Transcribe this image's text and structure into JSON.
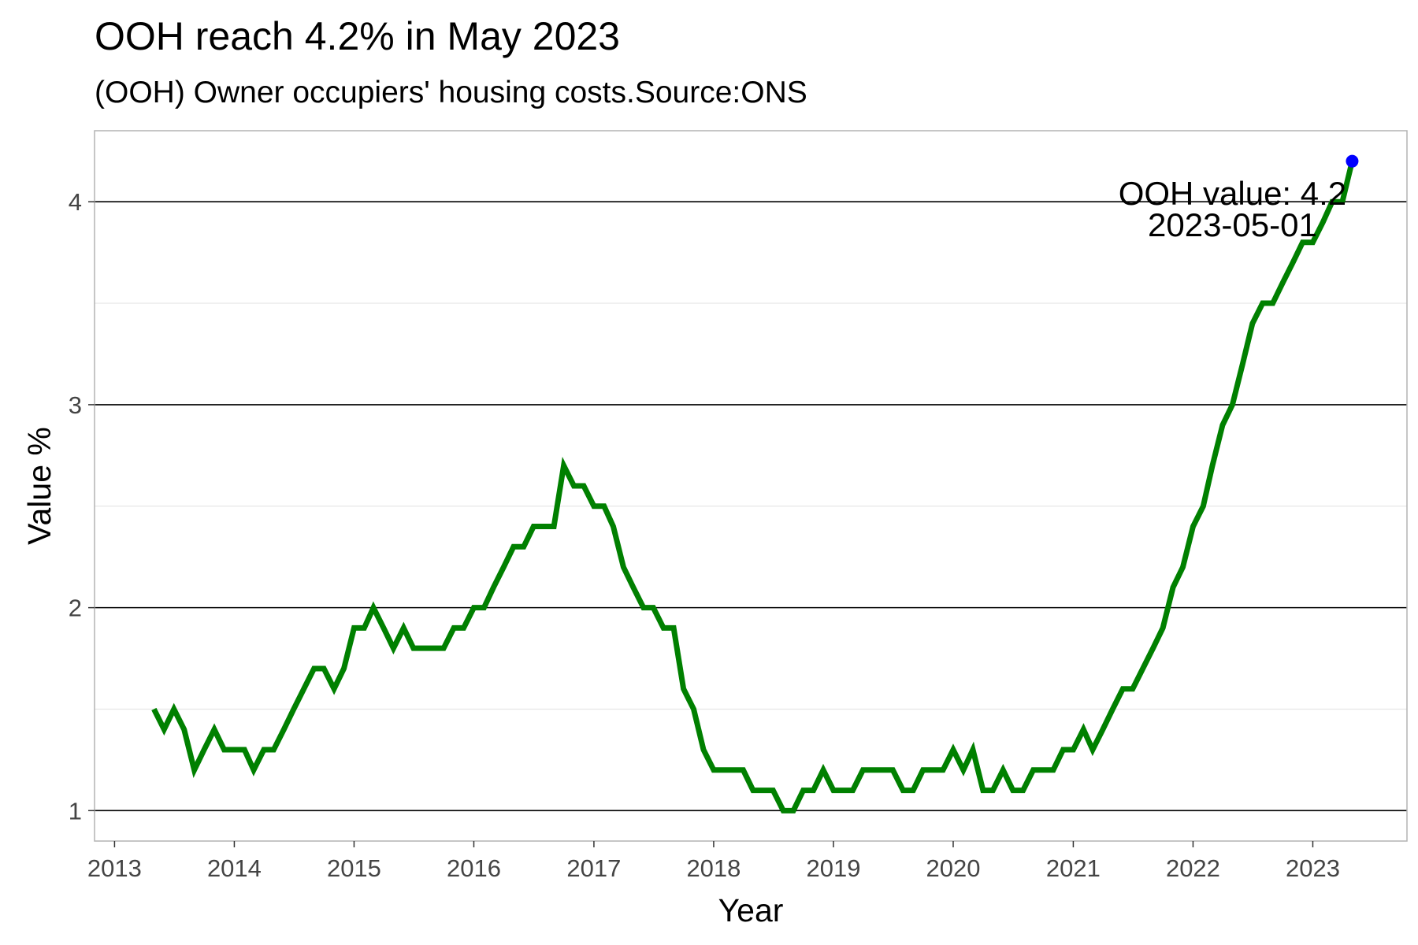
{
  "chart_data": {
    "type": "line",
    "title": "OOH reach 4.2% in May 2023",
    "subtitle": "(OOH) Owner occupiers' housing costs.Source:ONS",
    "xlabel": "Year",
    "ylabel": "Value %",
    "xlim": [
      "2012-11-01",
      "2023-10-15"
    ],
    "ylim": [
      0.85,
      4.35
    ],
    "x_ticks": [
      "2013",
      "2014",
      "2015",
      "2016",
      "2017",
      "2018",
      "2019",
      "2020",
      "2021",
      "2022",
      "2023"
    ],
    "y_ticks": [
      1,
      2,
      3,
      4
    ],
    "y_tick_labels": [
      "1",
      "2",
      "3",
      "4"
    ],
    "y_minor_gridlines": [
      1.5,
      2.5,
      3.5
    ],
    "grid": true,
    "legend": "none",
    "series": [
      {
        "color": "#008000",
        "x": [
          "2013-05-01",
          "2013-06-01",
          "2013-07-01",
          "2013-08-01",
          "2013-09-01",
          "2013-10-01",
          "2013-11-01",
          "2013-12-01",
          "2014-01-01",
          "2014-02-01",
          "2014-03-01",
          "2014-04-01",
          "2014-05-01",
          "2014-06-01",
          "2014-07-01",
          "2014-08-01",
          "2014-09-01",
          "2014-10-01",
          "2014-11-01",
          "2014-12-01",
          "2015-01-01",
          "2015-02-01",
          "2015-03-01",
          "2015-04-01",
          "2015-05-01",
          "2015-06-01",
          "2015-07-01",
          "2015-08-01",
          "2015-09-01",
          "2015-10-01",
          "2015-11-01",
          "2015-12-01",
          "2016-01-01",
          "2016-02-01",
          "2016-03-01",
          "2016-04-01",
          "2016-05-01",
          "2016-06-01",
          "2016-07-01",
          "2016-08-01",
          "2016-09-01",
          "2016-10-01",
          "2016-11-01",
          "2016-12-01",
          "2017-01-01",
          "2017-02-01",
          "2017-03-01",
          "2017-04-01",
          "2017-05-01",
          "2017-06-01",
          "2017-07-01",
          "2017-08-01",
          "2017-09-01",
          "2017-10-01",
          "2017-11-01",
          "2017-12-01",
          "2018-01-01",
          "2018-02-01",
          "2018-03-01",
          "2018-04-01",
          "2018-05-01",
          "2018-06-01",
          "2018-07-01",
          "2018-08-01",
          "2018-09-01",
          "2018-10-01",
          "2018-11-01",
          "2018-12-01",
          "2019-01-01",
          "2019-02-01",
          "2019-03-01",
          "2019-04-01",
          "2019-05-01",
          "2019-06-01",
          "2019-07-01",
          "2019-08-01",
          "2019-09-01",
          "2019-10-01",
          "2019-11-01",
          "2019-12-01",
          "2020-01-01",
          "2020-02-01",
          "2020-03-01",
          "2020-04-01",
          "2020-05-01",
          "2020-06-01",
          "2020-07-01",
          "2020-08-01",
          "2020-09-01",
          "2020-10-01",
          "2020-11-01",
          "2020-12-01",
          "2021-01-01",
          "2021-02-01",
          "2021-03-01",
          "2021-04-01",
          "2021-05-01",
          "2021-06-01",
          "2021-07-01",
          "2021-08-01",
          "2021-09-01",
          "2021-10-01",
          "2021-11-01",
          "2021-12-01",
          "2022-01-01",
          "2022-02-01",
          "2022-03-01",
          "2022-04-01",
          "2022-05-01",
          "2022-06-01",
          "2022-07-01",
          "2022-08-01",
          "2022-09-01",
          "2022-10-01",
          "2022-11-01",
          "2022-12-01",
          "2023-01-01",
          "2023-02-01",
          "2023-03-01",
          "2023-04-01",
          "2023-05-01"
        ],
        "values": [
          1.5,
          1.4,
          1.5,
          1.4,
          1.2,
          1.3,
          1.4,
          1.3,
          1.3,
          1.3,
          1.2,
          1.3,
          1.3,
          1.4,
          1.5,
          1.6,
          1.7,
          1.7,
          1.6,
          1.7,
          1.9,
          1.9,
          2.0,
          1.9,
          1.8,
          1.9,
          1.8,
          1.8,
          1.8,
          1.8,
          1.9,
          1.9,
          2.0,
          2.0,
          2.1,
          2.2,
          2.3,
          2.3,
          2.4,
          2.4,
          2.4,
          2.7,
          2.6,
          2.6,
          2.5,
          2.5,
          2.4,
          2.2,
          2.1,
          2.0,
          2.0,
          1.9,
          1.9,
          1.6,
          1.5,
          1.3,
          1.2,
          1.2,
          1.2,
          1.2,
          1.1,
          1.1,
          1.1,
          1.0,
          1.0,
          1.1,
          1.1,
          1.2,
          1.1,
          1.1,
          1.1,
          1.2,
          1.2,
          1.2,
          1.2,
          1.1,
          1.1,
          1.2,
          1.2,
          1.2,
          1.3,
          1.2,
          1.3,
          1.1,
          1.1,
          1.2,
          1.1,
          1.1,
          1.2,
          1.2,
          1.2,
          1.3,
          1.3,
          1.4,
          1.3,
          1.4,
          1.5,
          1.6,
          1.6,
          1.7,
          1.8,
          1.9,
          2.1,
          2.2,
          2.4,
          2.5,
          2.7,
          2.9,
          3.0,
          3.2,
          3.4,
          3.5,
          3.5,
          3.6,
          3.7,
          3.8,
          3.8,
          3.9,
          4.0,
          4.0,
          4.2
        ]
      }
    ],
    "highlight_point": {
      "x": "2023-05-01",
      "y": 4.2,
      "color": "#0000ff"
    },
    "annotation": {
      "line1": "OOH value: 4.2",
      "line2": "2023-05-01",
      "x": "2022-05-01",
      "y": 3.97
    }
  }
}
